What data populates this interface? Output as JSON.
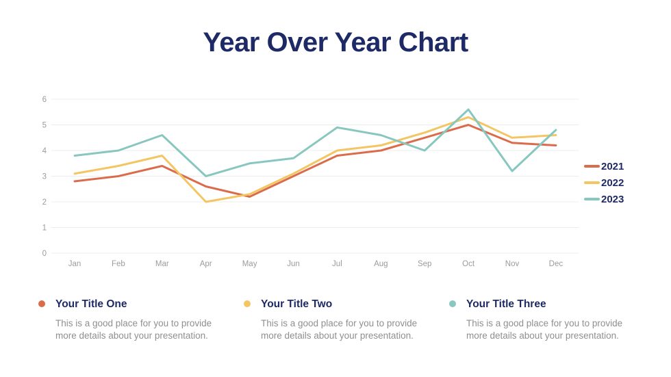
{
  "slide": {
    "title": "Year Over Year Chart"
  },
  "colors": {
    "navy": "#1E2A66",
    "axis_text": "#9B9B9B",
    "gridline": "#ECECEC",
    "body_text": "#8F8F8F",
    "background": "#FFFFFF"
  },
  "chart_data": {
    "type": "line",
    "title": "",
    "categories": [
      "Jan",
      "Feb",
      "Mar",
      "Apr",
      "May",
      "Jun",
      "Jul",
      "Aug",
      "Sep",
      "Oct",
      "Nov",
      "Dec"
    ],
    "series": [
      {
        "name": "2021",
        "color": "#DB6C4B",
        "values": [
          2.8,
          3.0,
          3.4,
          2.6,
          2.2,
          3.0,
          3.8,
          4.0,
          4.5,
          5.0,
          4.3,
          4.2
        ]
      },
      {
        "name": "2022",
        "color": "#F3C563",
        "values": [
          3.1,
          3.4,
          3.8,
          2.0,
          2.3,
          3.1,
          4.0,
          4.2,
          4.7,
          5.3,
          4.5,
          4.6
        ]
      },
      {
        "name": "2023",
        "color": "#87C7BF",
        "values": [
          3.8,
          4.0,
          4.6,
          3.0,
          3.5,
          3.7,
          4.9,
          4.6,
          4.0,
          5.6,
          3.2,
          4.8
        ]
      }
    ],
    "xlabel": "",
    "ylabel": "",
    "ylim": [
      0,
      6
    ],
    "yticks": [
      0,
      1,
      2,
      3,
      4,
      5,
      6
    ],
    "grid": "horizontal",
    "legend_position": "right"
  },
  "footer": {
    "items": [
      {
        "title": "Your Title One",
        "color": "#DB6C4B",
        "description": "This is a good place for you to provide\nmore details about your presentation."
      },
      {
        "title": "Your Title Two",
        "color": "#F3C563",
        "description": "This is a good place for you to provide\nmore details about your presentation."
      },
      {
        "title": "Your Title Three",
        "color": "#87C7BF",
        "description": "This is a good place for you to provide\nmore details about your presentation."
      }
    ]
  }
}
